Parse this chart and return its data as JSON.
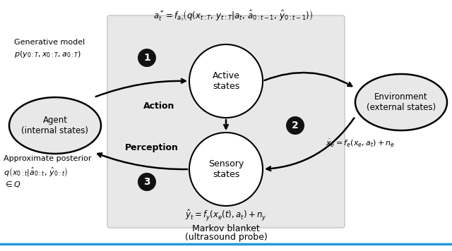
{
  "bg_color": "#ffffff",
  "box_color": "#e8e8e8",
  "box_edge_color": "#cccccc",
  "circle_color": "#f0f0f0",
  "circle_edge_color": "#000000",
  "ellipse_color": "#e8e8e8",
  "ellipse_edge_color": "#000000",
  "num_circle_color": "#111111",
  "num_text_color": "#ffffff",
  "title_eq": "$a_t^* = f_{a_t}\\left(q(x_{t:T},\\, y_{t:T}|a_t,\\, \\hat{a}_{0:t-1},\\, \\hat{y}_{0:t-1})\\right)$",
  "active_label": "Active\nstates",
  "sensory_label": "Sensory\nstates",
  "agent_label": "Agent\n(internal states)",
  "env_label": "Environment\n(external states)",
  "action_label": "Action",
  "perception_label": "Perception",
  "gen_model_line1": "Generative model",
  "gen_model_line2": "$p(y_{0:T}, x_{0:T}, a_{0:T})$",
  "approx_post_line1": "Approximate posterior",
  "approx_post_line2": "$q\\left(x_{0:t}|\\hat{a}_{0:t},\\, \\hat{y}_{0:t}\\right)$",
  "approx_post_line3": "$\\in Q$",
  "env_eq": "$\\dot{x}_e = f_e(x_e, a_t) + n_e$",
  "sens_eq": "$\\hat{y}_t = f_y(x_e(t), a_t) + n_y$",
  "markov_label1": "Markov blanket",
  "markov_label2": "(ultrasound probe)"
}
